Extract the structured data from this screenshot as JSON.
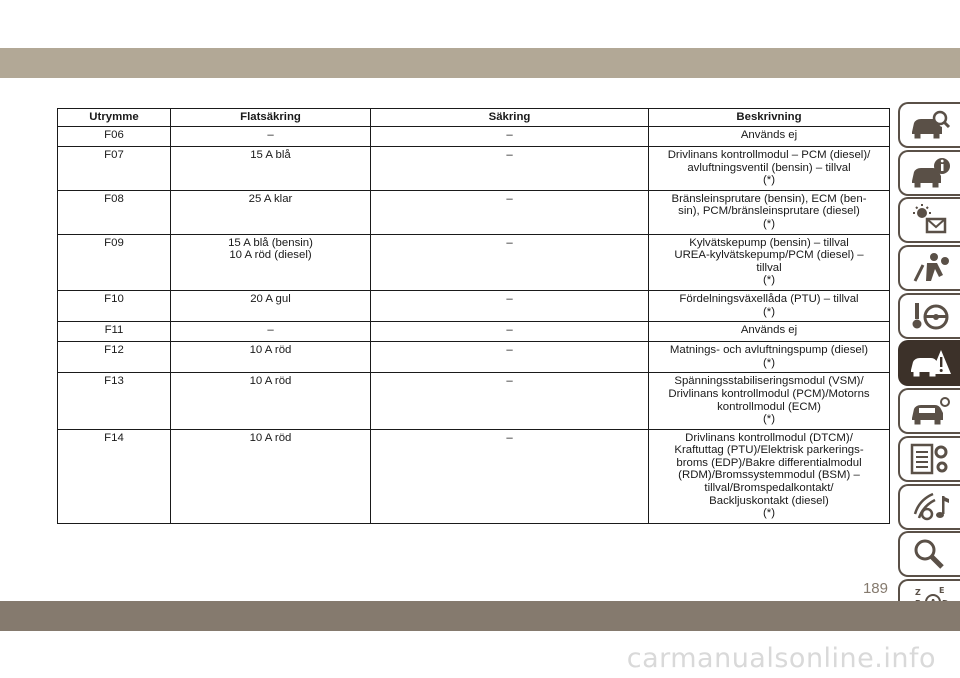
{
  "table": {
    "headers": [
      "Utrymme",
      "Flatsäkring",
      "Säkring",
      "Beskrivning"
    ],
    "rows": [
      [
        "F06",
        "–",
        "–",
        "Används ej"
      ],
      [
        "F07",
        "15 A blå",
        "–",
        "Drivlinans kontrollmodul – PCM (diesel)/\navluftningsventil (bensin) – tillval\n(*)"
      ],
      [
        "F08",
        "25 A klar",
        "–",
        "Bränsleinsprutare (bensin), ECM (ben-\nsin), PCM/bränsleinsprutare (diesel)\n(*)"
      ],
      [
        "F09",
        "15 A blå (bensin)\n10 A röd (diesel)",
        "–",
        "Kylvätskepump (bensin) – tillval\nUREA-kylvätskepump/PCM (diesel) –\ntillval\n(*)"
      ],
      [
        "F10",
        "20 A gul",
        "–",
        "Fördelningsväxellåda (PTU) – tillval\n(*)"
      ],
      [
        "F11",
        "–",
        "–",
        "Används ej"
      ],
      [
        "F12",
        "10 A röd",
        "–",
        "Matnings- och avluftningspump (diesel)\n(*)"
      ],
      [
        "F13",
        "10 A röd",
        "–",
        "Spänningsstabiliseringsmodul (VSM)/\nDrivlinans kontrollmodul (PCM)/Motorns\nkontrollmodul (ECM)\n(*)"
      ],
      [
        "F14",
        "10 A röd",
        "–",
        "Drivlinans kontrollmodul (DTCM)/\nKraftuttag (PTU)/Elektrisk parkerings-\nbroms (EDP)/Bakre differentialmodul\n(RDM)/Bromssystemmodul (BSM) –\ntillval/Bromspedalkontakt/\nBackljuskontakt (diesel)\n(*)"
      ]
    ]
  },
  "side_tabs": [
    {
      "icon": "car-magnifier-icon",
      "active": false
    },
    {
      "icon": "car-info-icon",
      "active": false
    },
    {
      "icon": "warning-lights-message-icon",
      "active": false
    },
    {
      "icon": "seat-airbag-icon",
      "active": false
    },
    {
      "icon": "key-steering-wheel-icon",
      "active": false
    },
    {
      "icon": "car-warning-icon",
      "active": true
    },
    {
      "icon": "car-service-icon",
      "active": false
    },
    {
      "icon": "specifications-gears-icon",
      "active": false
    },
    {
      "icon": "multimedia-music-icon",
      "active": false
    },
    {
      "icon": "search-index-icon",
      "active": false
    },
    {
      "icon": "alphabetical-index-icon",
      "active": false
    }
  ],
  "page_number": "189",
  "watermark": "carmanualsonline.info",
  "colors": {
    "top_band": "#b2a896",
    "bottom_band": "#857a6e",
    "tab_active": "#3c3129",
    "tab_border": "#5a5047"
  }
}
